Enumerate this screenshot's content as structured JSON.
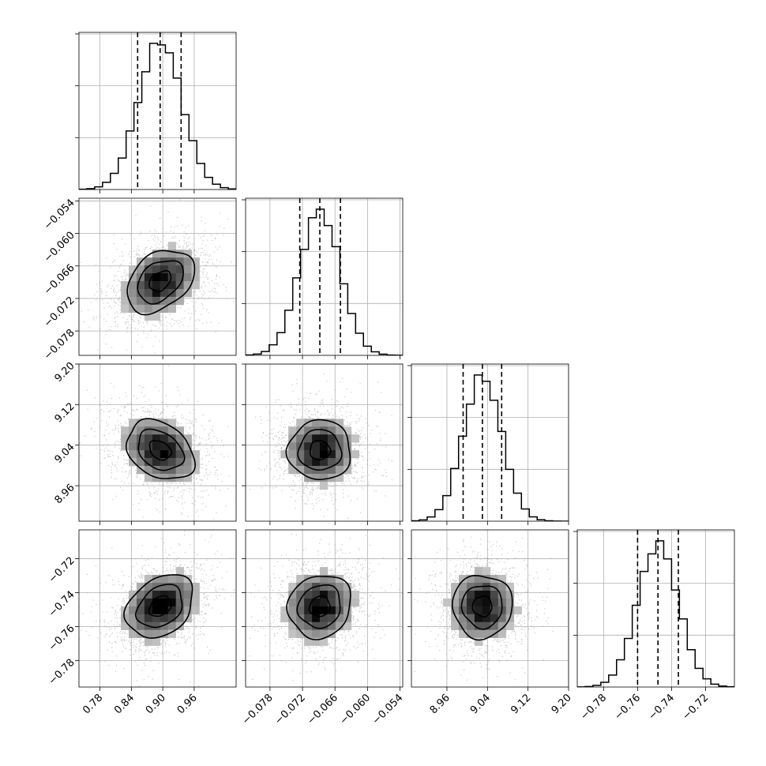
{
  "chart_data": {
    "type": "corner",
    "parameters": [
      {
        "name": "",
        "median": 0.895,
        "quantiles": [
          0.852,
          0.895,
          0.935
        ],
        "range": [
          0.74,
          1.04
        ],
        "ticks": [
          0.78,
          0.84,
          0.9,
          0.96
        ],
        "tick_labels": [
          "0.78",
          "0.84",
          "0.90",
          "0.96"
        ]
      },
      {
        "name": "",
        "median": -0.0688,
        "quantiles": [
          -0.0725,
          -0.0688,
          -0.065
        ],
        "range": [
          -0.0825,
          -0.0535
        ],
        "ticks": [
          -0.078,
          -0.072,
          -0.066,
          -0.06,
          -0.054
        ],
        "tick_labels": [
          "−0.078",
          "−0.072",
          "−0.066",
          "−0.060",
          "−0.054"
        ]
      },
      {
        "name": "",
        "median": 9.03,
        "quantiles": [
          8.992,
          9.03,
          9.068
        ],
        "range": [
          8.89,
          9.2
        ],
        "ticks": [
          8.96,
          9.04,
          9.12,
          9.2
        ],
        "tick_labels": [
          "8.96",
          "9.04",
          "9.12",
          "9.20"
        ]
      },
      {
        "name": "",
        "median": -0.748,
        "quantiles": [
          -0.76,
          -0.748,
          -0.736
        ],
        "range": [
          -0.7955,
          -0.703
        ],
        "ticks": [
          -0.78,
          -0.76,
          -0.74,
          -0.72
        ],
        "tick_labels": [
          "−0.78",
          "−0.76",
          "−0.74",
          "−0.72"
        ]
      }
    ],
    "correlations": {
      "0-1": 0.35,
      "0-2": -0.3,
      "0-3": 0.3,
      "1-2": 0.0,
      "1-3": 0.1,
      "2-3": 0.0
    },
    "histogram_bins": 20,
    "quantile_lines": "dashed",
    "contour_levels": 3,
    "grid": true,
    "colors": {
      "line": "#000000",
      "points": "#9a9a9a",
      "grid": "#b0b0b0"
    }
  }
}
